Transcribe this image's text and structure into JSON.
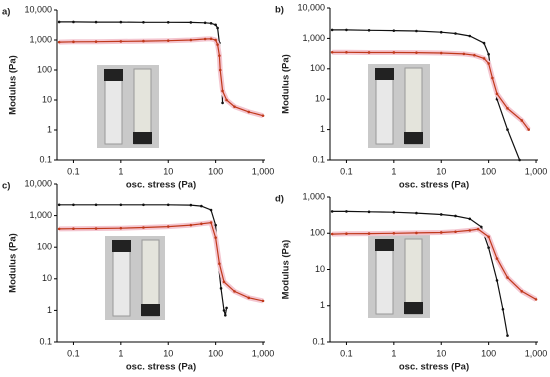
{
  "chart_data": [
    {
      "type": "line",
      "panel": "a)",
      "xlabel": "osc. stress (Pa)",
      "ylabel": "Modulus (Pa)",
      "log_x": true,
      "log_y": true,
      "xlim": [
        0.045,
        1100
      ],
      "ylim": [
        0.1,
        10000
      ],
      "xticks": [
        0.1,
        1,
        10,
        100,
        {
          "value": 1000,
          "label": "1,000"
        }
      ],
      "yticks": [
        0.1,
        1,
        10,
        100,
        {
          "value": 1000,
          "label": "1,000"
        },
        {
          "value": 10000,
          "label": "10,000"
        }
      ],
      "series": [
        {
          "color": "#111111",
          "x": [
            0.05,
            0.1,
            0.3,
            1,
            3,
            10,
            30,
            60,
            80,
            100,
            110,
            120,
            130,
            140
          ],
          "values": [
            4000,
            4000,
            3950,
            3950,
            3900,
            3900,
            3850,
            3750,
            3600,
            3200,
            2500,
            800,
            100,
            8
          ]
        },
        {
          "color": "#c0391b",
          "x": [
            0.05,
            0.1,
            0.3,
            1,
            3,
            10,
            30,
            60,
            80,
            100,
            110,
            120,
            125,
            140,
            170,
            250,
            500,
            1000
          ],
          "values": [
            850,
            870,
            880,
            900,
            920,
            950,
            1000,
            1080,
            1100,
            1000,
            700,
            300,
            100,
            20,
            10,
            6,
            4,
            3
          ]
        }
      ]
    },
    {
      "type": "line",
      "panel": "b)",
      "xlabel": "osc. stress (Pa)",
      "ylabel": "Modulus (Pa)",
      "log_x": true,
      "log_y": true,
      "xlim": [
        0.045,
        1100
      ],
      "ylim": [
        0.1,
        10000
      ],
      "xticks": [
        0.1,
        1,
        10,
        100,
        {
          "value": 1000,
          "label": "1,000"
        }
      ],
      "yticks": [
        0.1,
        1,
        10,
        100,
        {
          "value": 1000,
          "label": "1,000"
        },
        {
          "value": 10000,
          "label": "10,000"
        }
      ],
      "series": [
        {
          "color": "#111111",
          "x": [
            0.05,
            0.1,
            0.3,
            1,
            3,
            10,
            20,
            40,
            80,
            100,
            110,
            150,
            250,
            450
          ],
          "values": [
            1900,
            1900,
            1850,
            1800,
            1750,
            1600,
            1450,
            1200,
            700,
            300,
            100,
            10,
            1,
            0.1
          ]
        },
        {
          "color": "#c0391b",
          "x": [
            0.05,
            0.1,
            0.3,
            1,
            3,
            10,
            30,
            50,
            80,
            100,
            120,
            150,
            250,
            500,
            700
          ],
          "values": [
            350,
            350,
            345,
            345,
            340,
            330,
            310,
            280,
            220,
            150,
            50,
            15,
            5,
            2,
            1
          ]
        }
      ]
    },
    {
      "type": "line",
      "panel": "c)",
      "xlabel": "osc. stress (Pa)",
      "ylabel": "Modulus (Pa)",
      "log_x": true,
      "log_y": true,
      "xlim": [
        0.045,
        1100
      ],
      "ylim": [
        0.1,
        10000
      ],
      "xticks": [
        0.1,
        1,
        10,
        100,
        {
          "value": 1000,
          "label": "1,000"
        }
      ],
      "yticks": [
        0.1,
        1,
        10,
        100,
        {
          "value": 1000,
          "label": "1,000"
        },
        {
          "value": 10000,
          "label": "10,000"
        }
      ],
      "series": [
        {
          "color": "#111111",
          "x": [
            0.05,
            0.1,
            0.3,
            1,
            3,
            10,
            30,
            50,
            80,
            100,
            110,
            130,
            150,
            160,
            170
          ],
          "values": [
            2200,
            2200,
            2200,
            2200,
            2200,
            2200,
            2150,
            2000,
            1500,
            500,
            50,
            5,
            1,
            0.7,
            1.2
          ]
        },
        {
          "color": "#c0391b",
          "x": [
            0.05,
            0.1,
            0.3,
            1,
            3,
            10,
            30,
            50,
            80,
            100,
            120,
            150,
            250,
            500,
            1000
          ],
          "values": [
            380,
            385,
            390,
            400,
            420,
            450,
            500,
            550,
            600,
            200,
            30,
            8,
            4,
            2.5,
            2
          ]
        }
      ]
    },
    {
      "type": "line",
      "panel": "d)",
      "xlabel": "osc. stress (Pa)",
      "ylabel": "Modulus (Pa)",
      "log_x": true,
      "log_y": true,
      "xlim": [
        0.045,
        1100
      ],
      "ylim": [
        0.1,
        1000
      ],
      "xticks": [
        0.1,
        1,
        10,
        100,
        {
          "value": 1000,
          "label": "1,000"
        }
      ],
      "yticks": [
        0.1,
        1,
        10,
        100,
        {
          "value": 1000,
          "label": "1,000"
        }
      ],
      "series": [
        {
          "color": "#111111",
          "x": [
            0.05,
            0.1,
            0.3,
            1,
            3,
            10,
            20,
            40,
            70,
            100,
            150,
            200,
            250
          ],
          "values": [
            400,
            400,
            390,
            380,
            360,
            330,
            300,
            250,
            150,
            40,
            5,
            0.8,
            0.15
          ]
        },
        {
          "color": "#c0391b",
          "x": [
            0.05,
            0.1,
            0.3,
            1,
            3,
            10,
            20,
            40,
            60,
            100,
            150,
            250,
            500,
            1000
          ],
          "values": [
            95,
            97,
            98,
            100,
            102,
            105,
            110,
            120,
            130,
            80,
            20,
            6,
            2.5,
            1.5
          ]
        }
      ]
    }
  ]
}
